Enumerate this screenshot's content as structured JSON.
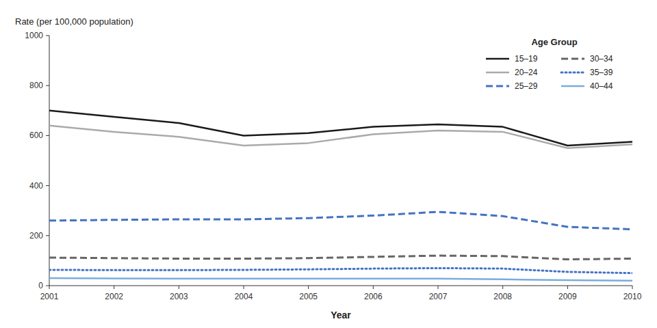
{
  "chart_data": {
    "type": "line",
    "xlabel": "Year",
    "ylabel": "Rate (per 100,000 population)",
    "legend_title": "Age Group",
    "x": [
      2001,
      2002,
      2003,
      2004,
      2005,
      2006,
      2007,
      2008,
      2009,
      2010
    ],
    "series": [
      {
        "name": "15–19",
        "color": "#1a1a1a",
        "line_style": "solid",
        "values": [
          700,
          675,
          650,
          600,
          610,
          635,
          645,
          635,
          560,
          575
        ]
      },
      {
        "name": "20–24",
        "color": "#aaaaaa",
        "line_style": "solid",
        "values": [
          640,
          615,
          595,
          560,
          570,
          605,
          620,
          615,
          550,
          565
        ]
      },
      {
        "name": "25–29",
        "color": "#4472c4",
        "line_style": "dashed",
        "values": [
          260,
          263,
          265,
          265,
          270,
          280,
          295,
          278,
          235,
          225
        ]
      },
      {
        "name": "30–34",
        "color": "#666666",
        "line_style": "dashed",
        "values": [
          112,
          110,
          108,
          108,
          110,
          115,
          120,
          118,
          105,
          108
        ]
      },
      {
        "name": "35–39",
        "color": "#4472c4",
        "line_style": "dotted",
        "values": [
          63,
          62,
          62,
          63,
          65,
          68,
          70,
          68,
          55,
          50
        ]
      },
      {
        "name": "40–44",
        "color": "#7aaddc",
        "line_style": "solid",
        "values": [
          30,
          29,
          28,
          28,
          28,
          28,
          28,
          25,
          22,
          20
        ]
      }
    ],
    "xlim": [
      2001,
      2010
    ],
    "xticks": [
      2001,
      2002,
      2003,
      2004,
      2005,
      2006,
      2007,
      2008,
      2009,
      2010
    ],
    "ylim": [
      0,
      1000
    ],
    "yticks": [
      0,
      200,
      400,
      600,
      800,
      1000
    ],
    "grid": false,
    "legend": "upper right"
  }
}
